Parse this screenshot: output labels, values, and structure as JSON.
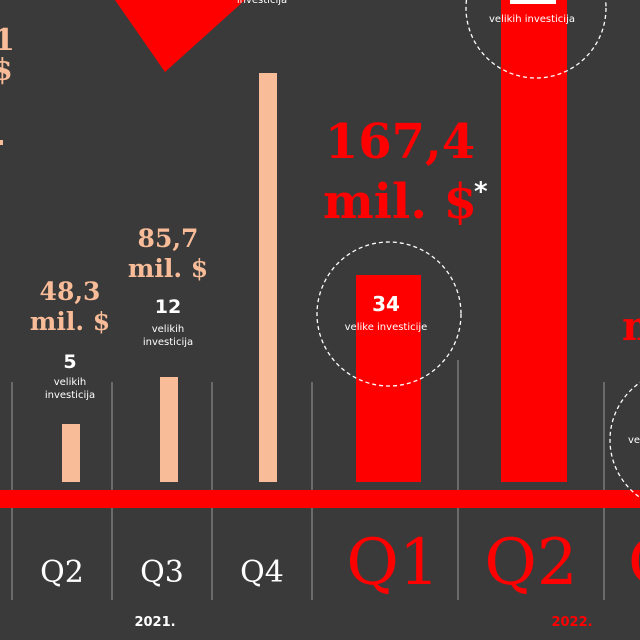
{
  "chart_data": {
    "type": "bar",
    "categories": [
      "Q2",
      "Q3",
      "Q4",
      "Q1",
      "Q2"
    ],
    "years": [
      "2021.",
      "2022."
    ],
    "colors": {
      "y2021": "#f9bc99",
      "y2022": "#ff0000",
      "background": "#3a3a3a",
      "divider": "#9a9a9a"
    },
    "bars": [
      {
        "quarter": "Q2",
        "year": "2021.",
        "amount": "48,3",
        "unit": "mil. $",
        "count": "5",
        "count_label": "velikih investicija",
        "value": 48.3
      },
      {
        "quarter": "Q3",
        "year": "2021.",
        "amount": "85,7",
        "unit": "mil. $",
        "count": "12",
        "count_label": "velikih investicija",
        "value": 85.7
      },
      {
        "quarter": "Q4",
        "year": "2021.",
        "amount": "",
        "unit": "",
        "count": "",
        "count_label": "investicija",
        "value": null
      },
      {
        "quarter": "Q1",
        "year": "2022.",
        "amount": "167,4",
        "unit": "mil. $",
        "asterisk": "*",
        "count": "34",
        "count_label": "velike investicije",
        "value": 167.4
      },
      {
        "quarter": "Q2",
        "year": "2022.",
        "amount": "",
        "unit": "",
        "count": "",
        "count_label": "velikih investicija",
        "value": null
      }
    ],
    "partial_labels": [
      "1",
      "$",
      "m",
      "ve"
    ]
  }
}
